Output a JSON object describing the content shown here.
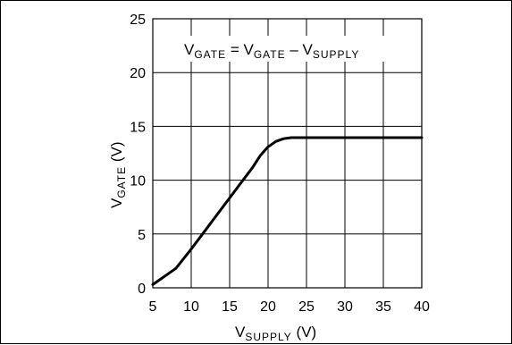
{
  "chart_data": {
    "type": "line",
    "xlabel": {
      "main": "V",
      "sub": "SUPPLY",
      "unit": " (V)"
    },
    "ylabel": {
      "main": "V",
      "sub": "GATE",
      "unit": " (V)"
    },
    "xlim": [
      5,
      40
    ],
    "ylim": [
      0,
      25
    ],
    "x_ticks": [
      5,
      10,
      15,
      20,
      25,
      30,
      35,
      40
    ],
    "y_ticks": [
      0,
      5,
      10,
      15,
      20,
      25
    ],
    "grid": true,
    "annotation": {
      "v1": "V",
      "s1": "GATE",
      "eq": " = ",
      "v2": "V",
      "s2": "GATE",
      "minus": " – ",
      "v3": "V",
      "s3": "SUPPLY"
    },
    "series": [
      {
        "x": [
          5,
          6,
          8,
          10,
          12,
          14,
          16,
          18,
          19,
          20,
          21,
          22,
          23,
          25,
          30,
          35,
          40
        ],
        "y": [
          0.3,
          0.8,
          1.8,
          3.6,
          5.5,
          7.4,
          9.3,
          11.2,
          12.3,
          13.1,
          13.6,
          13.85,
          13.95,
          13.95,
          13.95,
          13.95,
          13.95
        ]
      }
    ]
  },
  "colors": {
    "line": "#000000",
    "grid": "#000000",
    "background": "#ffffff"
  }
}
